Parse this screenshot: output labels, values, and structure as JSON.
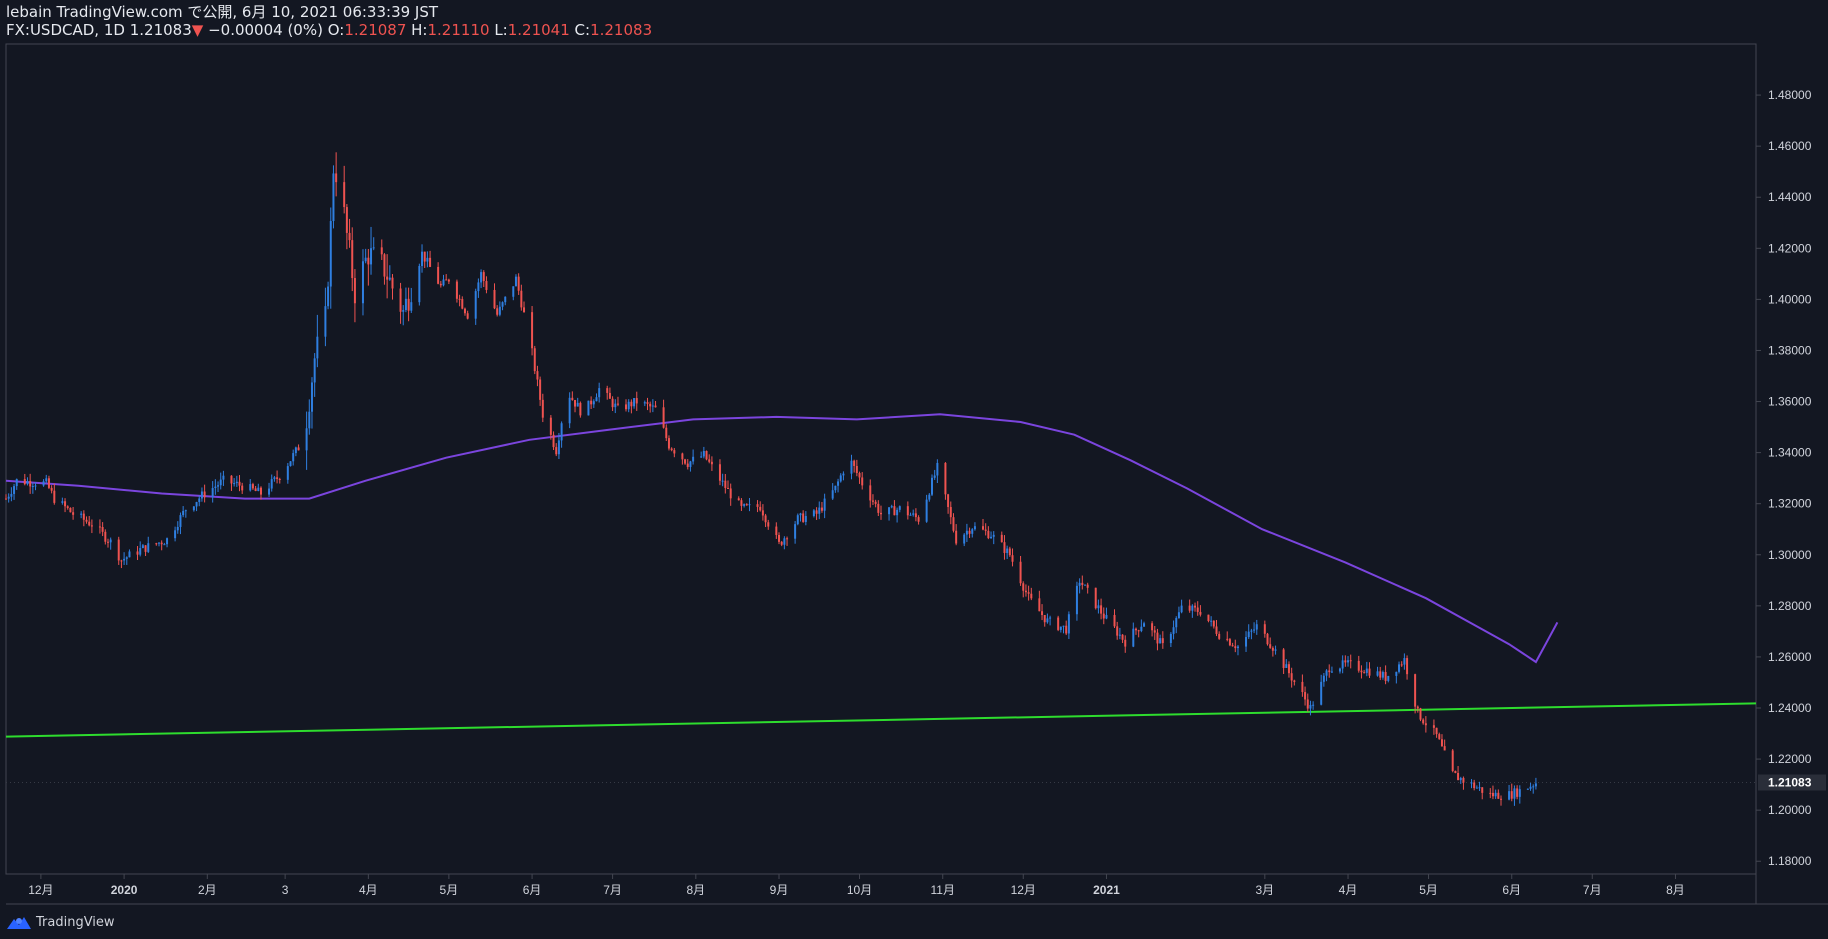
{
  "header": {
    "line1": "lebain TradingView.com で公開, 6月 10, 2021 06:33:39 JST",
    "symbol": "FX:USDCAD, 1D",
    "last": "1.21083",
    "change_arrow": "▼",
    "change": "−0.00004 (0%)",
    "o_label": "O:",
    "o_value": "1.21087",
    "h_label": "H:",
    "h_value": "1.21110",
    "l_label": "L:",
    "l_value": "1.21041",
    "c_label": "C:",
    "c_value": "1.21083"
  },
  "branding": {
    "name": "TradingView",
    "icon": "tradingview-logo-icon"
  },
  "colors": {
    "background": "#131722",
    "up": "#2f7fe0",
    "down": "#ef5350",
    "ma": "#7b45de",
    "trendline": "#2edc2e",
    "text": "#d1d4dc",
    "border": "#434651"
  },
  "chart_data": {
    "type": "candlestick",
    "symbol": "FX:USDCAD",
    "interval": "1D",
    "ylim": [
      1.175,
      1.5
    ],
    "y_ticks": [
      "1.18000",
      "1.20000",
      "1.22000",
      "1.24000",
      "1.26000",
      "1.28000",
      "1.30000",
      "1.32000",
      "1.34000",
      "1.36000",
      "1.38000",
      "1.40000",
      "1.42000",
      "1.44000",
      "1.46000",
      "1.48000"
    ],
    "last_price": "1.21083",
    "x_range": [
      "2019-11-18",
      "2021-08-31"
    ],
    "x_ticks": [
      {
        "date": "2019-12-01",
        "label": "12月"
      },
      {
        "date": "2020-01-01",
        "label": "2020",
        "bold": true
      },
      {
        "date": "2020-02-01",
        "label": "2月"
      },
      {
        "date": "2020-03-01",
        "label": "3"
      },
      {
        "date": "2020-04-01",
        "label": "4月"
      },
      {
        "date": "2020-05-01",
        "label": "5月"
      },
      {
        "date": "2020-06-01",
        "label": "6月"
      },
      {
        "date": "2020-07-01",
        "label": "7月"
      },
      {
        "date": "2020-08-01",
        "label": "8月"
      },
      {
        "date": "2020-09-01",
        "label": "9月"
      },
      {
        "date": "2020-10-01",
        "label": "10月"
      },
      {
        "date": "2020-11-01",
        "label": "11月"
      },
      {
        "date": "2020-12-01",
        "label": "12月"
      },
      {
        "date": "2021-01-01",
        "label": "2021",
        "bold": true
      },
      {
        "date": "2021-03-01",
        "label": "3月"
      },
      {
        "date": "2021-04-01",
        "label": "4月"
      },
      {
        "date": "2021-05-01",
        "label": "5月"
      },
      {
        "date": "2021-06-01",
        "label": "6月"
      },
      {
        "date": "2021-07-01",
        "label": "7月"
      },
      {
        "date": "2021-08-01",
        "label": "8月"
      }
    ],
    "price_path": [
      [
        "2019-11-18",
        1.322
      ],
      [
        "2019-11-22",
        1.329
      ],
      [
        "2019-12-03",
        1.328
      ],
      [
        "2019-12-06",
        1.322
      ],
      [
        "2019-12-13",
        1.316
      ],
      [
        "2019-12-20",
        1.312
      ],
      [
        "2019-12-27",
        1.305
      ],
      [
        "2019-12-31",
        1.298
      ],
      [
        "2020-01-07",
        1.302
      ],
      [
        "2020-01-17",
        1.306
      ],
      [
        "2020-01-24",
        1.318
      ],
      [
        "2020-01-31",
        1.324
      ],
      [
        "2020-02-07",
        1.329
      ],
      [
        "2020-02-14",
        1.327
      ],
      [
        "2020-02-21",
        1.324
      ],
      [
        "2020-02-28",
        1.331
      ],
      [
        "2020-03-06",
        1.342
      ],
      [
        "2020-03-09",
        1.354
      ],
      [
        "2020-03-12",
        1.377
      ],
      [
        "2020-03-16",
        1.392
      ],
      [
        "2020-03-18",
        1.428
      ],
      [
        "2020-03-19",
        1.452
      ],
      [
        "2020-03-21",
        1.448
      ],
      [
        "2020-03-24",
        1.425
      ],
      [
        "2020-03-27",
        1.403
      ],
      [
        "2020-04-01",
        1.418
      ],
      [
        "2020-04-07",
        1.412
      ],
      [
        "2020-04-14",
        1.395
      ],
      [
        "2020-04-21",
        1.418
      ],
      [
        "2020-04-28",
        1.405
      ],
      [
        "2020-05-01",
        1.408
      ],
      [
        "2020-05-08",
        1.394
      ],
      [
        "2020-05-13",
        1.41
      ],
      [
        "2020-05-19",
        1.394
      ],
      [
        "2020-05-26",
        1.408
      ],
      [
        "2020-05-31",
        1.385
      ],
      [
        "2020-06-05",
        1.355
      ],
      [
        "2020-06-10",
        1.341
      ],
      [
        "2020-06-14",
        1.364
      ],
      [
        "2020-06-20",
        1.355
      ],
      [
        "2020-06-26",
        1.365
      ],
      [
        "2020-07-03",
        1.357
      ],
      [
        "2020-07-10",
        1.36
      ],
      [
        "2020-07-17",
        1.357
      ],
      [
        "2020-07-22",
        1.343
      ],
      [
        "2020-07-29",
        1.336
      ],
      [
        "2020-08-04",
        1.339
      ],
      [
        "2020-08-11",
        1.328
      ],
      [
        "2020-08-18",
        1.318
      ],
      [
        "2020-08-25",
        1.319
      ],
      [
        "2020-09-01",
        1.304
      ],
      [
        "2020-09-08",
        1.314
      ],
      [
        "2020-09-15",
        1.316
      ],
      [
        "2020-09-22",
        1.326
      ],
      [
        "2020-09-27",
        1.338
      ],
      [
        "2020-10-02",
        1.328
      ],
      [
        "2020-10-09",
        1.316
      ],
      [
        "2020-10-16",
        1.318
      ],
      [
        "2020-10-23",
        1.314
      ],
      [
        "2020-10-30",
        1.334
      ],
      [
        "2020-11-06",
        1.306
      ],
      [
        "2020-11-12",
        1.311
      ],
      [
        "2020-11-19",
        1.308
      ],
      [
        "2020-11-26",
        1.3
      ],
      [
        "2020-12-03",
        1.283
      ],
      [
        "2020-12-10",
        1.274
      ],
      [
        "2020-12-17",
        1.271
      ],
      [
        "2020-12-22",
        1.29
      ],
      [
        "2020-12-31",
        1.276
      ],
      [
        "2021-01-08",
        1.266
      ],
      [
        "2021-01-15",
        1.274
      ],
      [
        "2021-01-22",
        1.264
      ],
      [
        "2021-01-29",
        1.279
      ],
      [
        "2021-02-05",
        1.278
      ],
      [
        "2021-02-12",
        1.269
      ],
      [
        "2021-02-19",
        1.264
      ],
      [
        "2021-02-26",
        1.272
      ],
      [
        "2021-03-04",
        1.264
      ],
      [
        "2021-03-11",
        1.252
      ],
      [
        "2021-03-18",
        1.24
      ],
      [
        "2021-03-25",
        1.256
      ],
      [
        "2021-04-01",
        1.257
      ],
      [
        "2021-04-08",
        1.255
      ],
      [
        "2021-04-15",
        1.252
      ],
      [
        "2021-04-22",
        1.259
      ],
      [
        "2021-04-27",
        1.238
      ],
      [
        "2021-05-04",
        1.229
      ],
      [
        "2021-05-10",
        1.214
      ],
      [
        "2021-05-17",
        1.21
      ],
      [
        "2021-05-24",
        1.206
      ],
      [
        "2021-05-31",
        1.206
      ],
      [
        "2021-06-05",
        1.208
      ],
      [
        "2021-06-10",
        1.2108
      ]
    ],
    "ma_path": [
      [
        "2019-11-18",
        1.329
      ],
      [
        "2019-12-15",
        1.327
      ],
      [
        "2020-01-15",
        1.324
      ],
      [
        "2020-02-15",
        1.322
      ],
      [
        "2020-03-10",
        1.322
      ],
      [
        "2020-03-31",
        1.329
      ],
      [
        "2020-04-30",
        1.338
      ],
      [
        "2020-05-31",
        1.345
      ],
      [
        "2020-06-30",
        1.349
      ],
      [
        "2020-07-31",
        1.353
      ],
      [
        "2020-08-31",
        1.354
      ],
      [
        "2020-09-30",
        1.353
      ],
      [
        "2020-10-31",
        1.355
      ],
      [
        "2020-11-30",
        1.352
      ],
      [
        "2020-12-20",
        1.347
      ],
      [
        "2021-01-10",
        1.337
      ],
      [
        "2021-01-31",
        1.326
      ],
      [
        "2021-02-28",
        1.31
      ],
      [
        "2021-03-31",
        1.297
      ],
      [
        "2021-04-30",
        1.283
      ],
      [
        "2021-05-31",
        1.265
      ],
      [
        "2021-06-10",
        1.258
      ],
      [
        "2021-06-18",
        1.2735
      ]
    ],
    "trendline": {
      "start": [
        "2019-11-18",
        1.2288
      ],
      "end": [
        "2021-08-31",
        1.2418
      ]
    }
  }
}
